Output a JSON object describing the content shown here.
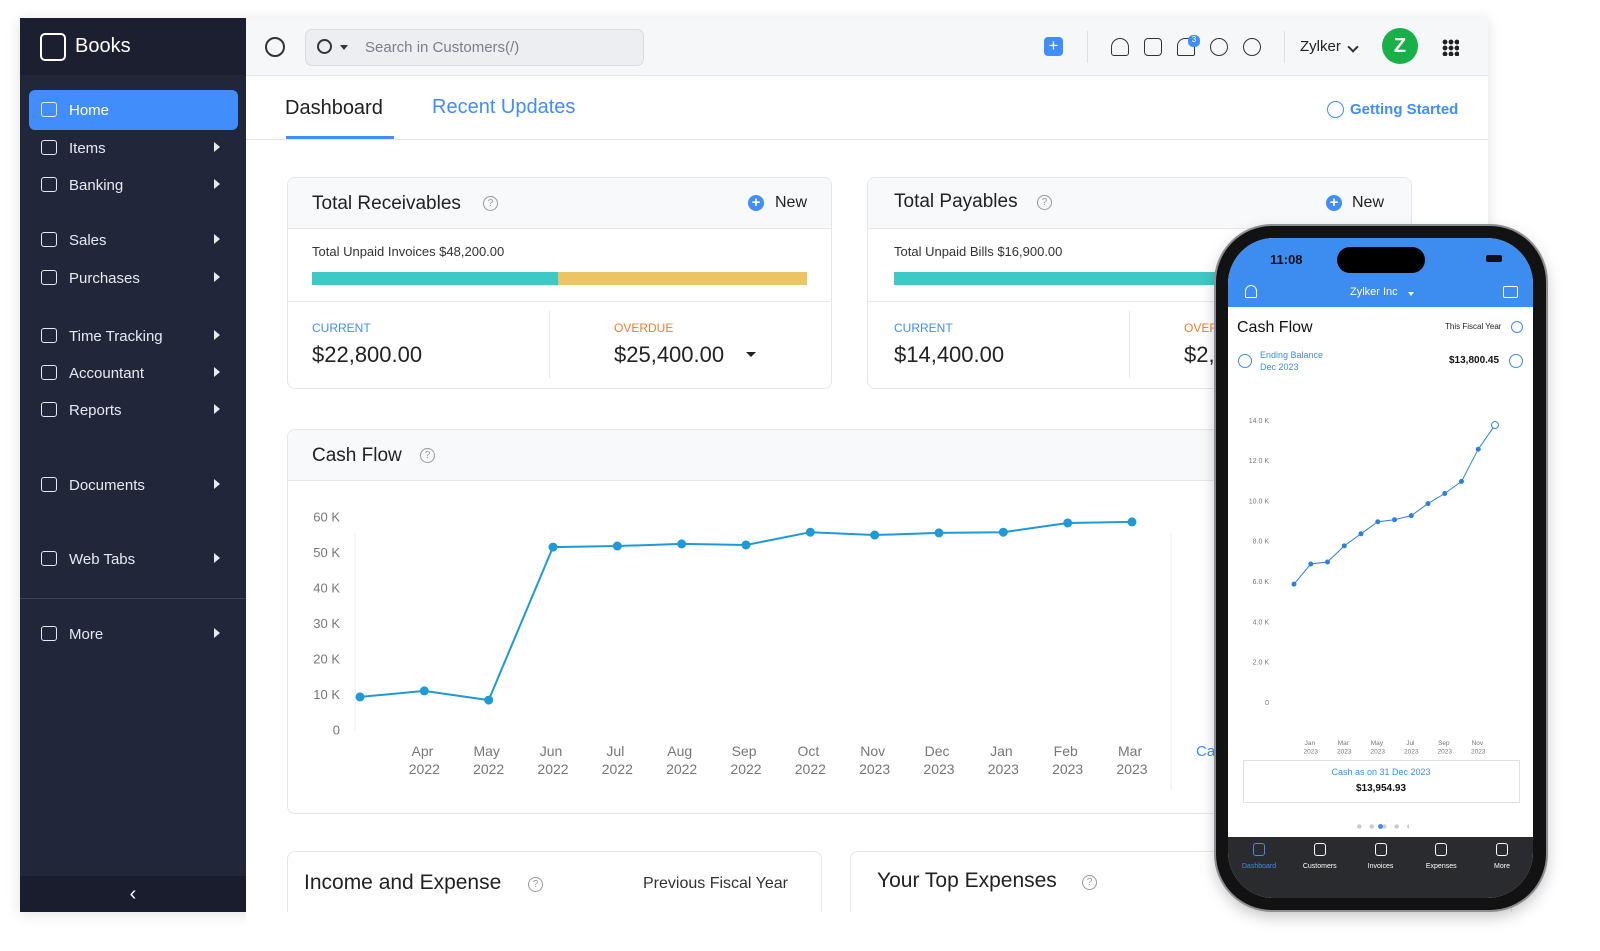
{
  "sidebar": {
    "brand": "Books",
    "items": [
      "Home",
      "Items",
      "Banking",
      "Sales",
      "Purchases",
      "Time Tracking",
      "Accountant",
      "Reports",
      "Documents",
      "Web Tabs",
      "More"
    ]
  },
  "topbar": {
    "search_placeholder": "Search in Customers(/)",
    "notifications": 3,
    "org": "Zylker",
    "avatar": "Z"
  },
  "tabs": [
    "Dashboard",
    "Recent Updates"
  ],
  "getting_started": "Getting Started",
  "receivables": {
    "title": "Total Receivables",
    "new": "New",
    "unpaid": "Total Unpaid Invoices $48,200.00",
    "current_label": "CURRENT",
    "current": "$22,800.00",
    "overdue_label": "OVERDUE",
    "overdue": "$25,400.00"
  },
  "payables": {
    "title": "Total Payables",
    "new": "New",
    "unpaid": "Total Unpaid Bills $16,900.00",
    "current_label": "CURRENT",
    "current": "$14,400.00",
    "overdue_label": "OVER",
    "overdue": "$2,"
  },
  "cash_flow_side_label": "Ca",
  "income_expense": {
    "title": "Income and Expense",
    "period": "Previous Fiscal Year"
  },
  "top_expenses": {
    "title": "Your Top Expenses"
  },
  "phone": {
    "time": "11:08",
    "org": "Zylker Inc",
    "period": "This Fiscal Year",
    "ending_label": "Ending Balance",
    "ending_date": "Dec 2023",
    "ending_value": "$13,800.45",
    "cash_as_on": "Cash as on 31 Dec 2023",
    "cash_value": "$13,954.93",
    "tabs": [
      "Dashboard",
      "Customers",
      "Invoices",
      "Expenses",
      "More"
    ]
  },
  "chart_data": [
    {
      "type": "line",
      "title": "Cash Flow",
      "categories": [
        null,
        "Apr 2022",
        "May 2022",
        "Jun 2022",
        "Jul 2022",
        "Aug 2022",
        "Sep 2022",
        "Oct 2022",
        "Nov 2023",
        "Dec 2023",
        "Jan 2023",
        "Feb 2023",
        "Mar 2023"
      ],
      "values": [
        9600,
        11300,
        8700,
        51800,
        52100,
        52700,
        52400,
        56000,
        55200,
        55800,
        56000,
        58600,
        58900
      ],
      "color": "#1f9ad6",
      "ylim": [
        0,
        60000
      ],
      "yticks": [
        0,
        {
          "value": 10000,
          "label": "10 K"
        },
        {
          "value": 20000,
          "label": "20 K"
        },
        {
          "value": 30000,
          "label": "30 K"
        },
        {
          "value": 40000,
          "label": "40 K"
        },
        {
          "value": 50000,
          "label": "50 K"
        },
        {
          "value": 60000,
          "label": "60 K"
        }
      ],
      "grid": false
    },
    {
      "type": "line",
      "title": "Cash Flow",
      "categories": [
        null,
        "Jan 2023",
        null,
        "Mar 2023",
        null,
        "May 2023",
        null,
        "Jul 2023",
        null,
        "Sep 2023",
        null,
        "Nov 2023",
        null
      ],
      "values": [
        5900,
        6900,
        7000,
        7800,
        8400,
        9000,
        9100,
        9300,
        9900,
        10400,
        11000,
        12600,
        13800
      ],
      "color": "#2f80d8",
      "ylim": [
        0,
        14000
      ],
      "yticks": [
        0,
        {
          "value": 2000,
          "label": "2.0 K"
        },
        {
          "value": 4000,
          "label": "4.0 K"
        },
        {
          "value": 6000,
          "label": "6.0 K"
        },
        {
          "value": 8000,
          "label": "8.0 K"
        },
        {
          "value": 10000,
          "label": "10.0 K"
        },
        {
          "value": 12000,
          "label": "12.0 K"
        },
        {
          "value": 14000,
          "label": "14.0 K"
        }
      ],
      "grid": false
    }
  ]
}
